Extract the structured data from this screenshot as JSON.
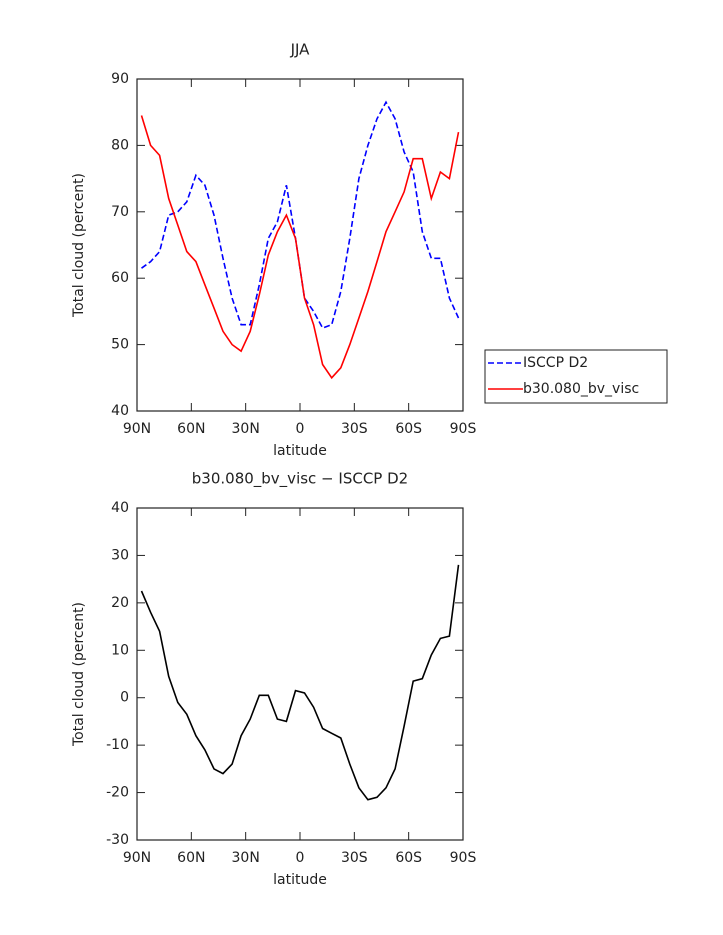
{
  "chart_data": [
    {
      "type": "line",
      "title": "JJA",
      "xlabel": "latitude",
      "ylabel": "Total cloud (percent)",
      "x": [
        87.5,
        82.5,
        77.5,
        72.5,
        67.5,
        62.5,
        57.5,
        52.5,
        47.5,
        42.5,
        37.5,
        32.5,
        27.5,
        22.5,
        17.5,
        12.5,
        7.5,
        2.5,
        -2.5,
        -7.5,
        -12.5,
        -17.5,
        -22.5,
        -27.5,
        -32.5,
        -37.5,
        -42.5,
        -47.5,
        -52.5,
        -57.5,
        -62.5,
        -67.5,
        -72.5,
        -77.5,
        -82.5,
        -87.5
      ],
      "series": [
        {
          "name": "ISCCP D2",
          "color": "#0000ff",
          "style": "dashed",
          "values": [
            61.5,
            62.5,
            64,
            69.5,
            70,
            71.5,
            75.5,
            74,
            69.5,
            63,
            57,
            53,
            53,
            59,
            66,
            68.5,
            74,
            66,
            57,
            55,
            52.5,
            53,
            58,
            66,
            75,
            80,
            84,
            86.5,
            84,
            79,
            76,
            67,
            63,
            63,
            57,
            54
          ]
        },
        {
          "name": "b30.080_bv_visc",
          "color": "#ff0000",
          "style": "solid",
          "values": [
            84.5,
            80,
            78.5,
            72,
            68,
            64,
            62.5,
            59,
            55.5,
            52,
            50,
            49,
            52,
            57.5,
            63.5,
            67,
            69.5,
            66,
            57,
            53,
            47,
            45,
            46.5,
            50,
            54,
            58,
            62.5,
            67,
            70,
            73,
            78,
            78,
            72,
            76,
            75,
            82
          ]
        }
      ],
      "xlim": [
        90,
        -90
      ],
      "xticks": [
        {
          "value": 90,
          "label": "90N"
        },
        {
          "value": 60,
          "label": "60N"
        },
        {
          "value": 30,
          "label": "30N"
        },
        0,
        {
          "value": -30,
          "label": "30S"
        },
        {
          "value": -60,
          "label": "60S"
        },
        {
          "value": -90,
          "label": "90S"
        }
      ],
      "ylim": [
        40,
        90
      ],
      "yticks": [
        40,
        50,
        60,
        70,
        80,
        90
      ],
      "legend": "right"
    },
    {
      "type": "line",
      "title": "b30.080_bv_visc − ISCCP D2",
      "xlabel": "latitude",
      "ylabel": "Total cloud (percent)",
      "x": [
        87.5,
        82.5,
        77.5,
        72.5,
        67.5,
        62.5,
        57.5,
        52.5,
        47.5,
        42.5,
        37.5,
        32.5,
        27.5,
        22.5,
        17.5,
        12.5,
        7.5,
        2.5,
        -2.5,
        -7.5,
        -12.5,
        -17.5,
        -22.5,
        -27.5,
        -32.5,
        -37.5,
        -42.5,
        -47.5,
        -52.5,
        -57.5,
        -62.5,
        -67.5,
        -72.5,
        -77.5,
        -82.5,
        -87.5
      ],
      "series": [
        {
          "color": "#000000",
          "style": "solid",
          "values": [
            22.5,
            18,
            14,
            4.5,
            -1,
            -3.5,
            -8,
            -11,
            -15,
            -16,
            -14,
            -8,
            -4.5,
            0.5,
            0.5,
            -4.5,
            -5,
            1.5,
            1,
            -2,
            -6.5,
            -7.5,
            -8.5,
            -14,
            -19,
            -21.5,
            -21,
            -19,
            -15,
            -6,
            3.5,
            4,
            9,
            12.5,
            13,
            28
          ]
        }
      ],
      "xlim": [
        90,
        -90
      ],
      "xticks": [
        {
          "value": 90,
          "label": "90N"
        },
        {
          "value": 60,
          "label": "60N"
        },
        {
          "value": 30,
          "label": "30N"
        },
        0,
        {
          "value": -30,
          "label": "30S"
        },
        {
          "value": -60,
          "label": "60S"
        },
        {
          "value": -90,
          "label": "90S"
        }
      ],
      "ylim": [
        -30,
        40
      ],
      "yticks": [
        -30,
        -20,
        -10,
        0,
        10,
        20,
        30,
        40
      ]
    }
  ]
}
